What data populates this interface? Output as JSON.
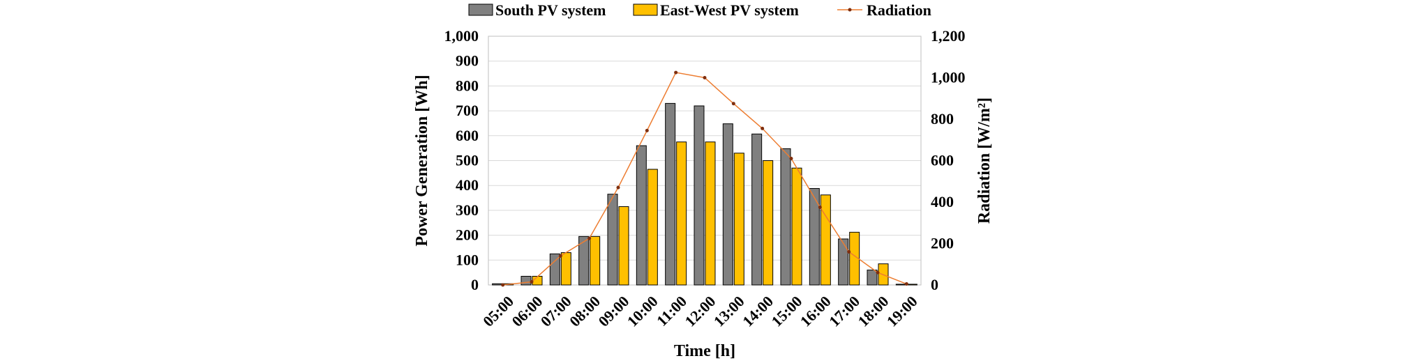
{
  "chart_data": {
    "type": "bar",
    "title": "",
    "categories": [
      "05:00",
      "06:00",
      "07:00",
      "08:00",
      "09:00",
      "10:00",
      "11:00",
      "12:00",
      "13:00",
      "14:00",
      "15:00",
      "16:00",
      "17:00",
      "18:00",
      "19:00"
    ],
    "series": [
      {
        "name": "South PV system",
        "type": "bar",
        "axis": "left",
        "color": "#808080",
        "values": [
          5,
          35,
          125,
          195,
          365,
          560,
          730,
          720,
          648,
          607,
          548,
          388,
          185,
          60,
          3
        ]
      },
      {
        "name": "East-West PV system",
        "type": "bar",
        "axis": "left",
        "color": "#FFC000",
        "values": [
          5,
          35,
          130,
          195,
          315,
          465,
          575,
          575,
          530,
          500,
          470,
          362,
          212,
          85,
          3
        ]
      },
      {
        "name": "Radiation",
        "type": "line",
        "axis": "right",
        "color": "#ED7D31",
        "marker_color": "#7F2F0F",
        "values": [
          0,
          15,
          140,
          225,
          470,
          745,
          1025,
          1000,
          875,
          755,
          610,
          375,
          160,
          60,
          5
        ]
      }
    ],
    "xlabel": "Time [h]",
    "ylabel": "Power Generation [Wh]",
    "y2label": "Radiation [W/m²]",
    "ylim": [
      0,
      1000
    ],
    "y2lim": [
      0,
      1200
    ],
    "yticks": [
      "0",
      "100",
      "200",
      "300",
      "400",
      "500",
      "600",
      "700",
      "800",
      "900",
      "1,000"
    ],
    "y2ticks": [
      "0",
      "200",
      "400",
      "600",
      "800",
      "1,000",
      "1,200"
    ],
    "grid": true,
    "legend_position": "top"
  }
}
